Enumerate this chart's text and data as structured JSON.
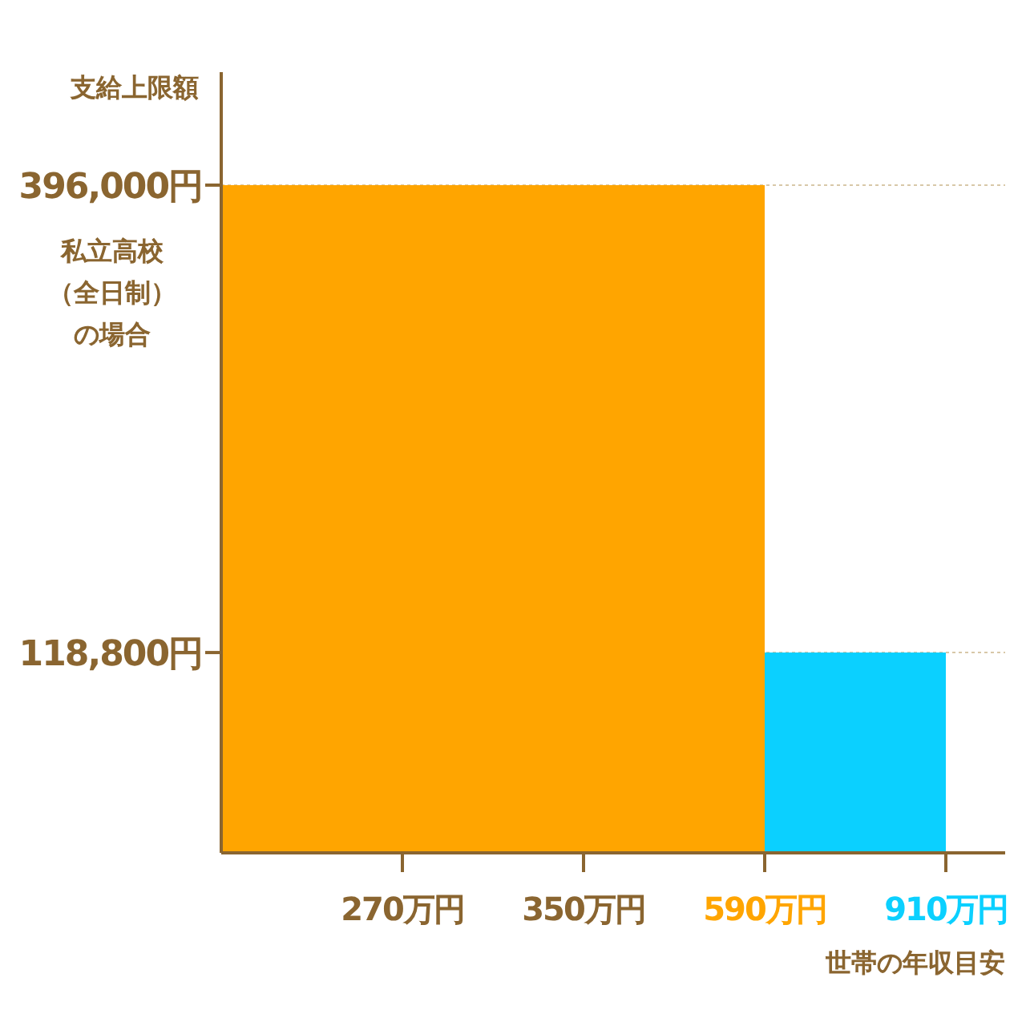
{
  "chart_data": {
    "type": "bar",
    "ylabel": "支給上限額",
    "xlabel": "世帯の年収目安",
    "categories": [
      "270万円",
      "350万円",
      "590万円",
      "910万円"
    ],
    "values": [
      396000,
      396000,
      396000,
      118800
    ],
    "colors": [
      "#ffa500",
      "#ffa500",
      "#ffa500",
      "#0bd0ff"
    ],
    "ylim": [
      0,
      463000
    ],
    "yticks": [
      {
        "value": 396000,
        "label": "396,000円"
      },
      {
        "value": 118800,
        "label": "118,800円"
      }
    ],
    "ref_lines": [
      {
        "axis": "y",
        "value": 396000,
        "color": "#d8c8a8",
        "line_style": "dotted"
      },
      {
        "axis": "y",
        "value": 118800,
        "color": "#d8c8a8",
        "line_style": "dotted"
      }
    ],
    "annotations": [
      "私立高校（全日制）の場合"
    ]
  }
}
